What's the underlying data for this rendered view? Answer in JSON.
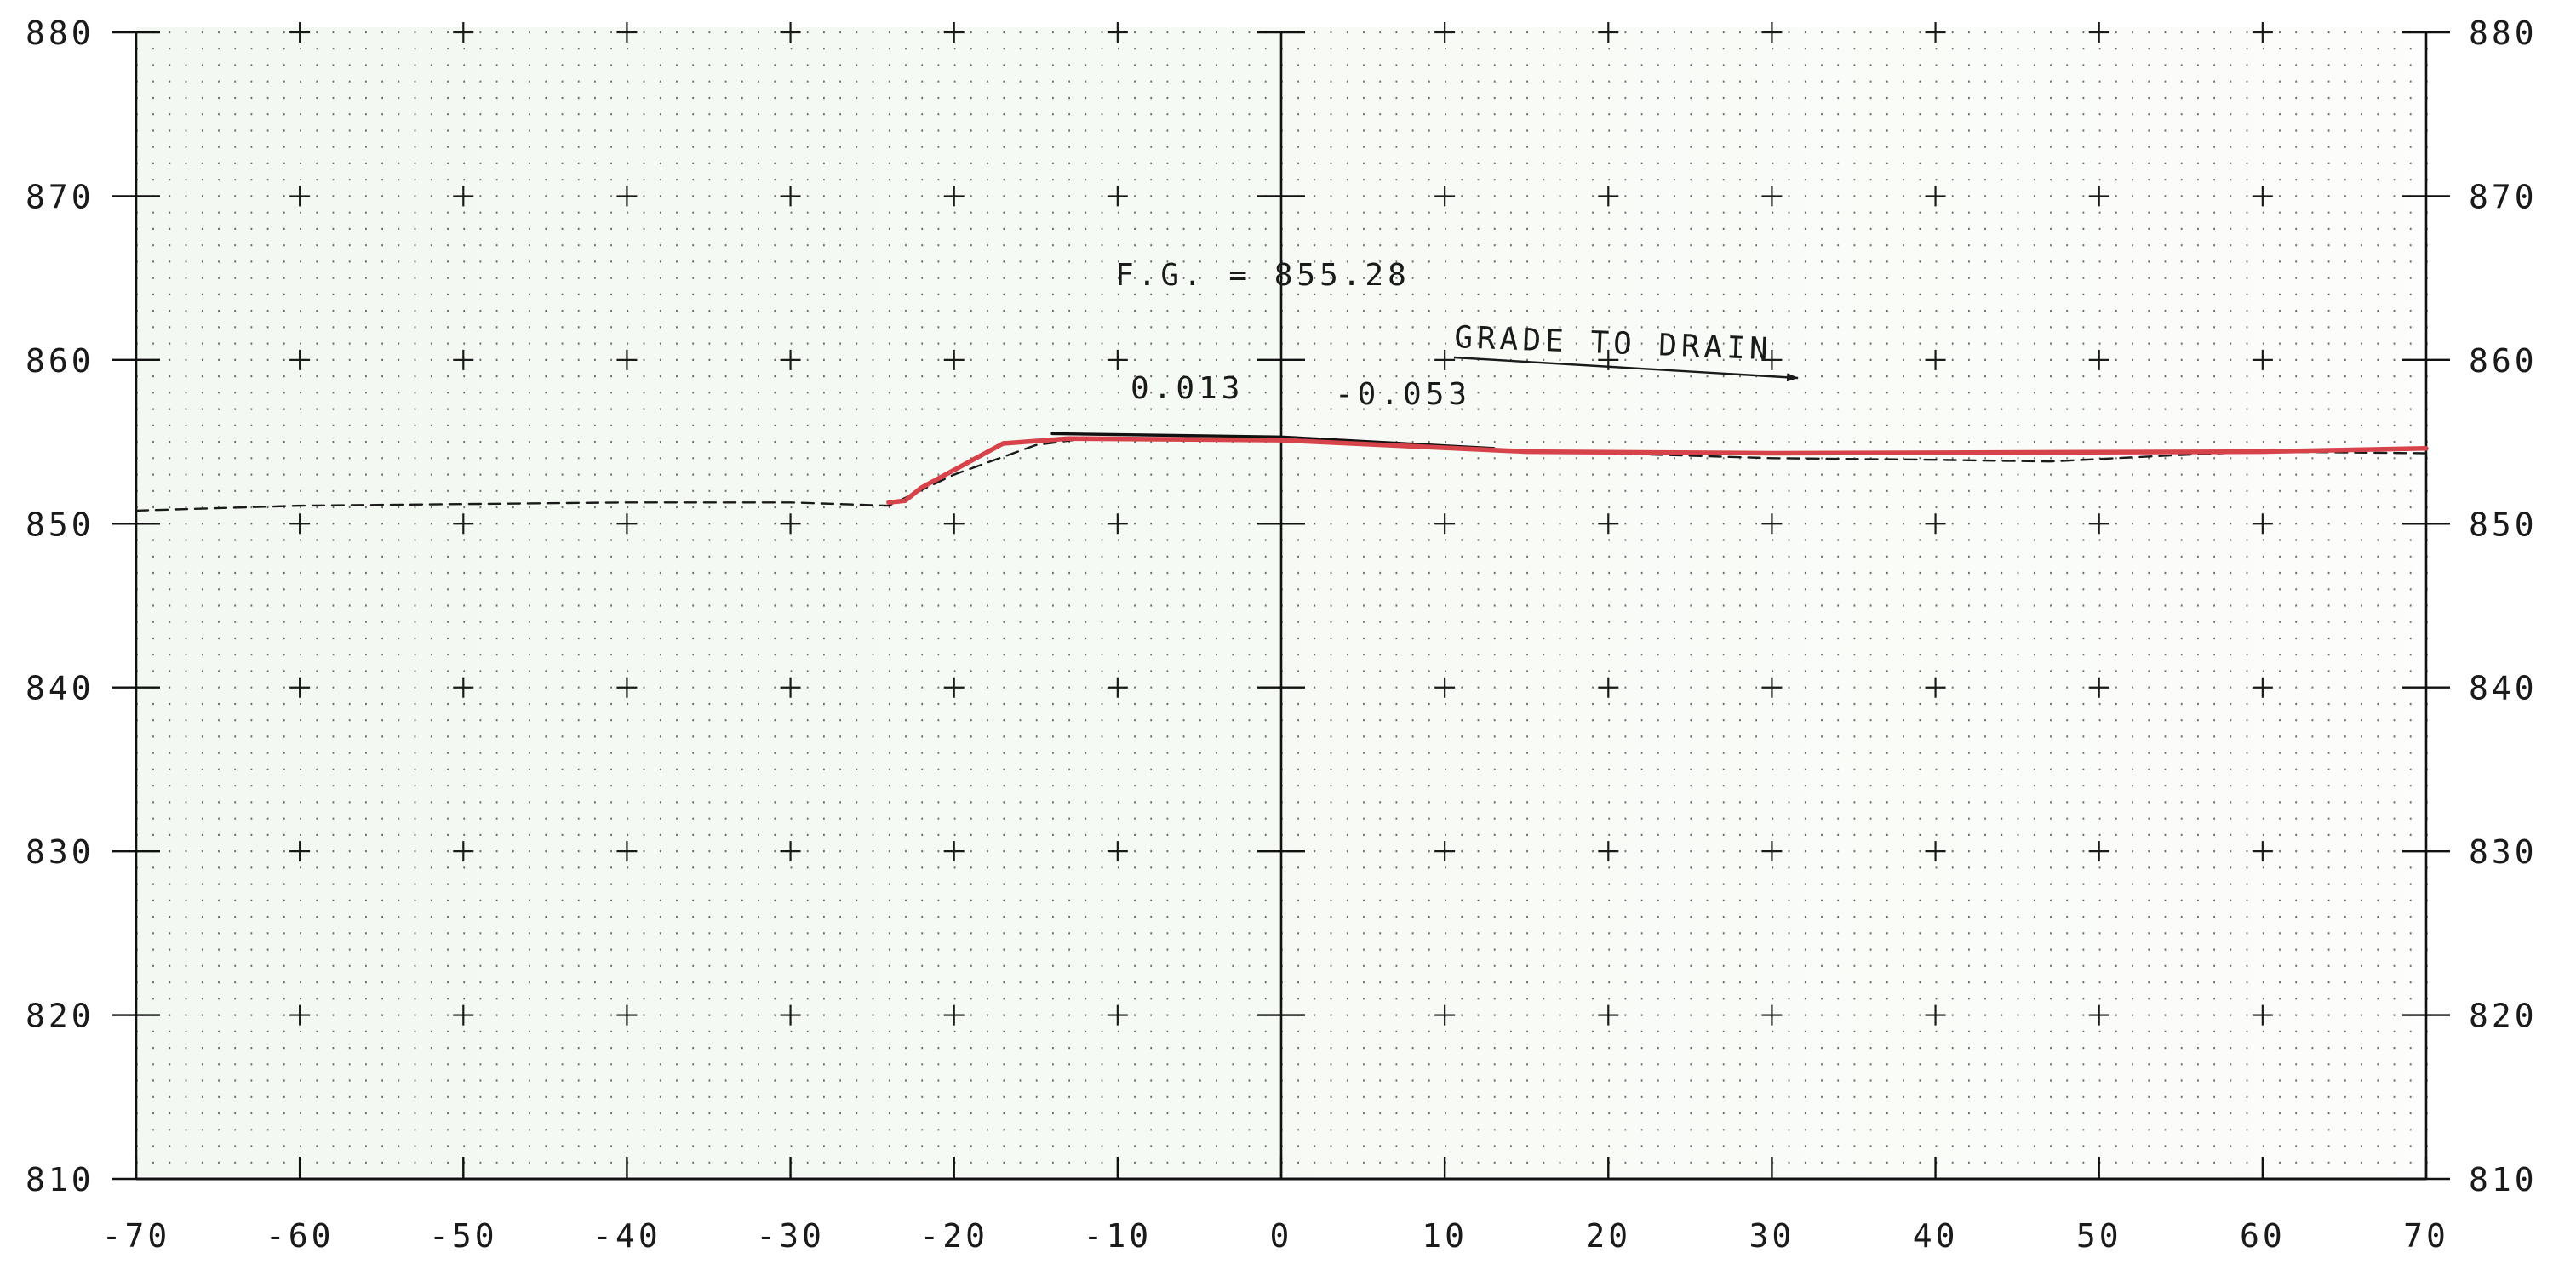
{
  "chart_data": {
    "type": "line",
    "title": "",
    "xlabel": "",
    "ylabel": "",
    "xlim": [
      -70,
      70
    ],
    "ylim": [
      810,
      880
    ],
    "x_ticks": [
      -70,
      -60,
      -50,
      -40,
      -30,
      -20,
      -10,
      0,
      10,
      20,
      30,
      40,
      50,
      60,
      70
    ],
    "y_ticks": [
      810,
      820,
      830,
      840,
      850,
      860,
      870,
      880
    ],
    "x_tick_labels": [
      "-70",
      "-60",
      "-50",
      "-40",
      "-30",
      "-20",
      "-10",
      "0",
      "10",
      "20",
      "30",
      "40",
      "50",
      "60",
      "70"
    ],
    "y_tick_labels": [
      "810",
      "820",
      "830",
      "840",
      "850",
      "860",
      "870",
      "880"
    ],
    "grid": true,
    "series": [
      {
        "style": "dashed",
        "color": "#1a1a1a",
        "x": [
          -70,
          -60,
          -50,
          -40,
          -30,
          -24,
          -20,
          -15,
          -12,
          0,
          10,
          20,
          30,
          40,
          47,
          55,
          60,
          70
        ],
        "y": [
          850.8,
          851.1,
          851.2,
          851.3,
          851.3,
          851.1,
          853.0,
          854.8,
          855.2,
          855.1,
          854.6,
          854.3,
          854.0,
          853.9,
          853.8,
          854.2,
          854.4,
          854.3
        ]
      },
      {
        "style": "solid",
        "color": "#111111",
        "x": [
          -14,
          0,
          13
        ],
        "y": [
          855.5,
          855.3,
          854.6
        ]
      },
      {
        "style": "solid",
        "color": "#d6434b",
        "x": [
          -24,
          -23,
          -22,
          -17,
          -13,
          0,
          15,
          30,
          60,
          70
        ],
        "y": [
          851.3,
          851.4,
          852.2,
          854.9,
          855.2,
          855.1,
          854.4,
          854.3,
          854.4,
          854.6
        ]
      }
    ],
    "annotations": {
      "fg": "F.G. = 855.28",
      "left_slope": "0.013",
      "right_slope": "-0.053",
      "grade_note": "GRADE TO DRAIN"
    }
  }
}
